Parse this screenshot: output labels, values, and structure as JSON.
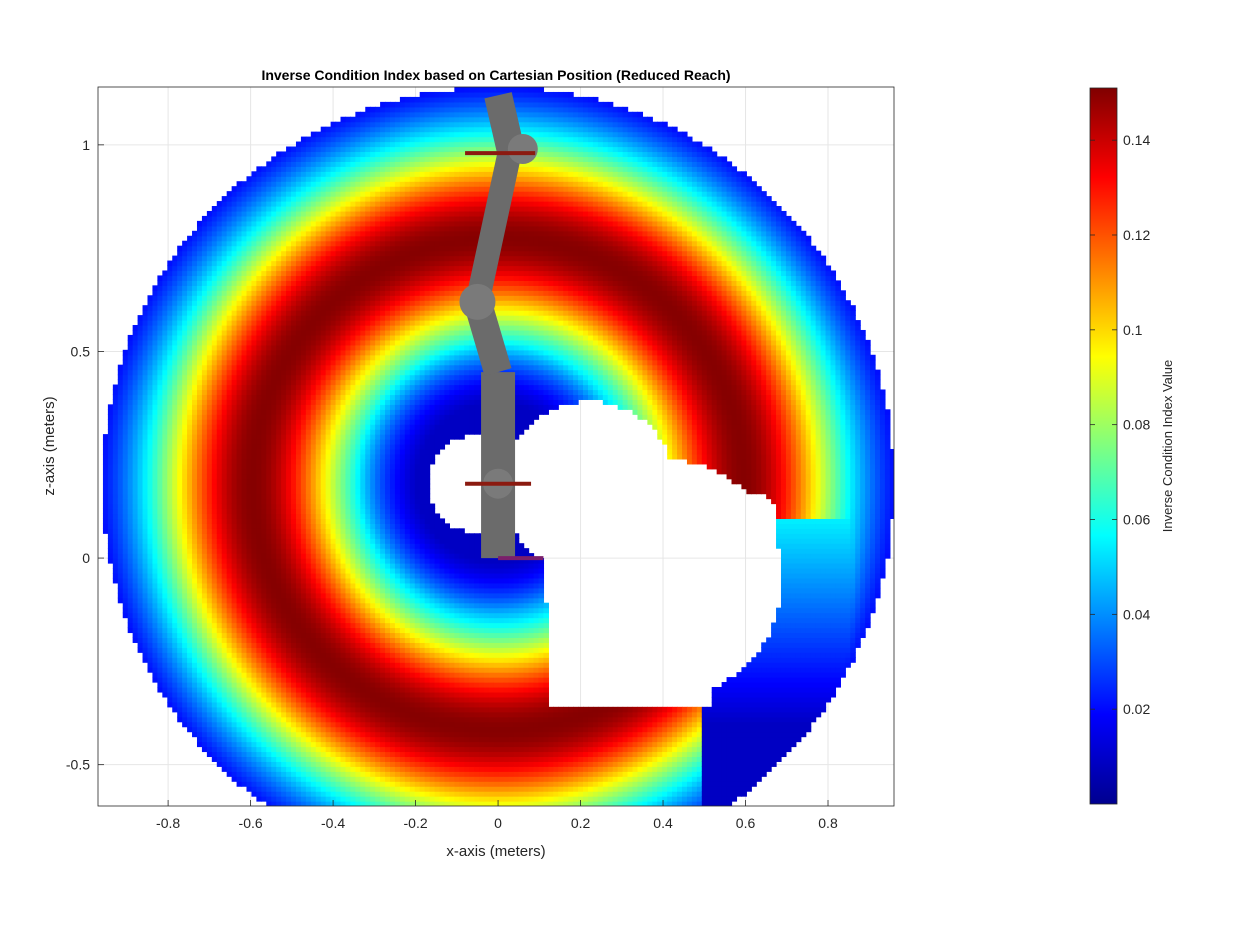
{
  "chart_data": {
    "type": "heatmap",
    "title": "Inverse Condition Index based on Cartesian Position (Reduced Reach)",
    "xlabel": "x-axis (meters)",
    "ylabel": "z-axis (meters)",
    "xlim": [
      -0.97,
      0.96
    ],
    "ylim": [
      -0.6,
      1.14
    ],
    "xticks": [
      -0.8,
      -0.6,
      -0.4,
      -0.2,
      0,
      0.2,
      0.4,
      0.6,
      0.8
    ],
    "xtick_labels": [
      "-0.8",
      "-0.6",
      "-0.4",
      "-0.2",
      "0",
      "0.2",
      "0.4",
      "0.6",
      "0.8"
    ],
    "yticks": [
      -0.5,
      0,
      0.5,
      1
    ],
    "ytick_labels": [
      "-0.5",
      "0",
      "0.5",
      "1"
    ],
    "grid": true,
    "colormap": "jet",
    "colorbar": {
      "label": "Inverse Condition Index Value",
      "clim": [
        0,
        0.151
      ],
      "ticks": [
        0.02,
        0.04,
        0.06,
        0.08,
        0.1,
        0.12,
        0.14
      ],
      "tick_labels": [
        "0.02",
        "0.04",
        "0.06",
        "0.08",
        "0.1",
        "0.12",
        "0.14"
      ]
    },
    "workspace": {
      "center": [
        0,
        0.18
      ],
      "outer_radius": 0.96,
      "max_value": 0.15,
      "min_value": 0.01
    },
    "robot_arm": {
      "color": "#6b6b6b",
      "base": [
        0,
        0
      ],
      "elbow": [
        -0.05,
        0.62
      ],
      "wrist": [
        0.03,
        0.99
      ],
      "top": [
        0,
        1.12
      ]
    }
  }
}
